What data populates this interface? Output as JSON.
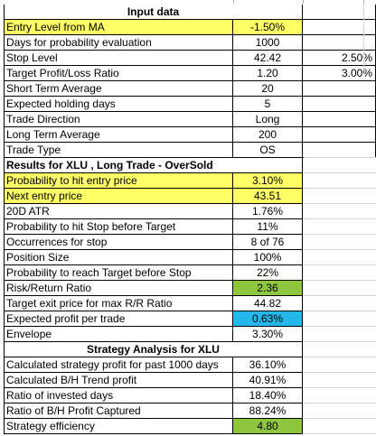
{
  "colors": {
    "highlight_yellow": "#ffff66",
    "highlight_green": "#8ec63f",
    "highlight_cyan": "#25b7e9"
  },
  "input": {
    "header": "Input data",
    "rows": [
      {
        "label": "Entry Level from MA",
        "value": "-1.50%",
        "extra": "",
        "highlight": "yellow"
      },
      {
        "label": "Days for probability evaluation",
        "value": "1000",
        "extra": "",
        "highlight": ""
      },
      {
        "label": "Stop Level",
        "value": "42.42",
        "extra": "2.50%",
        "highlight": ""
      },
      {
        "label": "Target Profit/Loss Ratio",
        "value": "1.20",
        "extra": "3.00%",
        "highlight": ""
      },
      {
        "label": "Short Term Average",
        "value": "20",
        "extra": "",
        "highlight": ""
      },
      {
        "label": "Expected holding days",
        "value": "5",
        "extra": "",
        "highlight": ""
      },
      {
        "label": "Trade Direction",
        "value": "Long",
        "extra": "",
        "highlight": ""
      },
      {
        "label": "Long Term Average",
        "value": "200",
        "extra": "",
        "highlight": ""
      },
      {
        "label": "Trade Type",
        "value": "OS",
        "extra": "",
        "highlight": ""
      }
    ]
  },
  "results": {
    "header": "Results for XLU , Long Trade - OverSold",
    "rows": [
      {
        "label": "Probability to hit entry price",
        "value": "3.10%",
        "highlight": "yellow"
      },
      {
        "label": "Next entry price",
        "value": "43.51",
        "highlight": "yellow"
      },
      {
        "label": "20D ATR",
        "value": "1.76%",
        "highlight": ""
      },
      {
        "label": "Probability to hit Stop before Target",
        "value": "11%",
        "highlight": ""
      },
      {
        "label": "Occurrences for stop",
        "value": "8 of 76",
        "highlight": ""
      },
      {
        "label": "Position Size",
        "value": "100%",
        "highlight": ""
      },
      {
        "label": "Probability to reach Target before Stop",
        "value": "22%",
        "highlight": ""
      },
      {
        "label": "Risk/Return Ratio",
        "value": "2.36",
        "highlight": "green"
      },
      {
        "label": "Target exit price for max R/R Ratio",
        "value": "44.82",
        "highlight": ""
      },
      {
        "label": "Expected profit per trade",
        "value": "0.63%",
        "highlight": "cyan"
      },
      {
        "label": "Envelope",
        "value": "3.30%",
        "highlight": ""
      }
    ]
  },
  "strategy": {
    "header": "Strategy Analysis for XLU",
    "rows": [
      {
        "label": "Calculated strategy profit for past 1000 days",
        "value": "36.10%",
        "highlight": ""
      },
      {
        "label": "Calculated B/H Trend profit",
        "value": "40.91%",
        "highlight": ""
      },
      {
        "label": "Ratio of invested days",
        "value": "18.40%",
        "highlight": ""
      },
      {
        "label": "Ratio of B/H Profit Captured",
        "value": "88.24%",
        "highlight": ""
      },
      {
        "label": "Strategy efficiency",
        "value": "4.80",
        "highlight": "green"
      }
    ]
  }
}
